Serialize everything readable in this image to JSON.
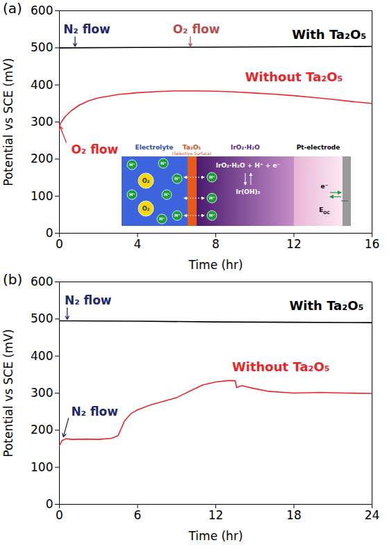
{
  "chart_data": [
    {
      "type": "line",
      "panel": "(a)",
      "x_label": "Time (hr)",
      "y_label": "Potential vs SCE (mV)",
      "xlim": [
        0,
        16
      ],
      "xticks": [
        0,
        4,
        8,
        12,
        16
      ],
      "ylim": [
        0,
        600
      ],
      "yticks": [
        0,
        100,
        200,
        300,
        400,
        500,
        600
      ],
      "series": [
        {
          "name": "With Ta₂O₅",
          "color": "#000000",
          "label_at": [
            13.8,
            535
          ],
          "x": [
            0,
            4,
            8,
            12,
            16
          ],
          "values": [
            500,
            501,
            502,
            503,
            504
          ]
        },
        {
          "name": "Without Ta₂O₅",
          "color": "#e8262a",
          "label_at": [
            12,
            420
          ],
          "x": [
            0,
            0.1,
            0.3,
            0.6,
            1,
            1.5,
            2,
            3,
            4,
            5,
            6,
            7,
            8,
            9,
            10,
            11,
            12,
            13,
            14,
            15,
            16
          ],
          "values": [
            290,
            300,
            315,
            330,
            345,
            357,
            365,
            374,
            379,
            382,
            384,
            384,
            383,
            381,
            378,
            375,
            371,
            366,
            361,
            355,
            350
          ]
        }
      ],
      "annotations": [
        {
          "text": "N₂ flow",
          "color": "#1f2a6b",
          "x": 0.2,
          "y": 550,
          "from": [
            0.8,
            530
          ],
          "to": [
            0.8,
            504
          ]
        },
        {
          "text": "O₂ flow",
          "color": "#b5504f",
          "x": 5.8,
          "y": 550,
          "from": [
            6.7,
            530
          ],
          "to": [
            6.7,
            504
          ]
        },
        {
          "text": "O₂ flow",
          "color": "#e8262a",
          "x": 0.6,
          "y": 225,
          "from": [
            0.35,
            245
          ],
          "to": [
            0.03,
            288
          ]
        }
      ],
      "inset": {
        "electrolyte": "Electrolyte",
        "surface": "Ta₂O₅",
        "surface_note": "(Selective Surface)",
        "film": "IrO₂·H₂O",
        "electrode": "Pt-electrode",
        "reaction_top": "IrO₂·H₂O + H⁺ + e⁻",
        "reaction_bottom": "Ir(OH)₃",
        "oxygen": "O₂",
        "proton": "H⁺",
        "electron": "e⁻",
        "potential": {
          "base": "E",
          "sub": "OC"
        }
      }
    },
    {
      "type": "line",
      "panel": "(b)",
      "x_label": "Time (hr)",
      "y_label": "Potential vs SCE (mV)",
      "xlim": [
        0,
        24
      ],
      "xticks": [
        0,
        6,
        12,
        18,
        24
      ],
      "ylim": [
        0,
        600
      ],
      "yticks": [
        0,
        100,
        200,
        300,
        400,
        500,
        600
      ],
      "series": [
        {
          "name": "With Ta₂O₅",
          "color": "#000000",
          "label_at": [
            20.5,
            535
          ],
          "x": [
            0,
            6,
            12,
            18,
            24
          ],
          "values": [
            495,
            494,
            492,
            491,
            490
          ]
        },
        {
          "name": "Without Ta₂O₅",
          "color": "#e8262a",
          "label_at": [
            17,
            370
          ],
          "x": [
            0,
            0.2,
            0.5,
            1,
            2,
            3,
            4,
            4.5,
            5,
            5.5,
            6,
            7,
            8,
            9,
            10,
            11,
            12,
            13,
            13.5,
            13.6,
            14,
            15,
            16,
            18,
            20,
            22,
            24
          ],
          "values": [
            158,
            172,
            177,
            175,
            176,
            175,
            178,
            185,
            225,
            245,
            255,
            268,
            278,
            288,
            305,
            322,
            330,
            334,
            333,
            315,
            320,
            312,
            305,
            300,
            302,
            300,
            299
          ]
        }
      ],
      "annotations": [
        {
          "text": "N₂ flow",
          "color": "#1f2a6b",
          "x": 0.4,
          "y": 550,
          "from": [
            0.6,
            530
          ],
          "to": [
            0.6,
            499
          ]
        },
        {
          "text": "N₂ flow",
          "color": "#1f2a6b",
          "x": 0.9,
          "y": 250,
          "from": [
            0.7,
            232
          ],
          "to": [
            0.3,
            182
          ]
        }
      ]
    }
  ]
}
